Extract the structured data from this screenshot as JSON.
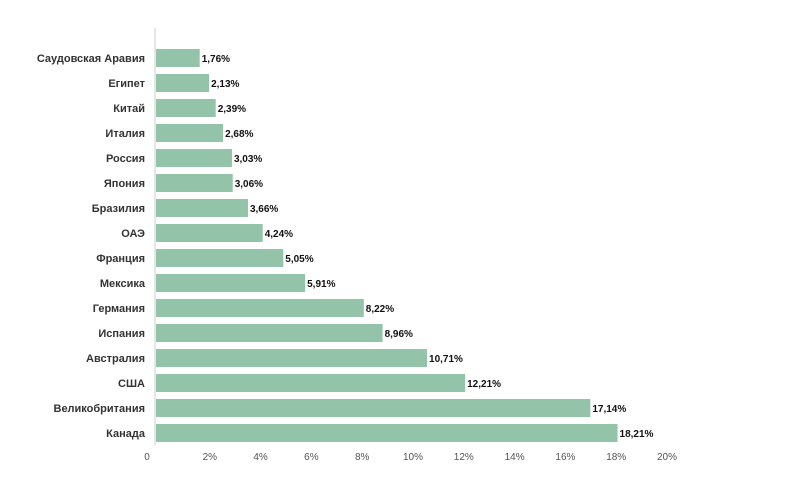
{
  "chart_data": {
    "type": "bar",
    "orientation": "horizontal",
    "categories": [
      "Саудовская Аравия",
      "Египет",
      "Китай",
      "Италия",
      "Россия",
      "Япония",
      "Бразилия",
      "ОАЭ",
      "Франция",
      "Мексика",
      "Германия",
      "Испания",
      "Австралия",
      "США",
      "Великобритания",
      "Канада"
    ],
    "values": [
      1.76,
      2.13,
      2.39,
      2.68,
      3.03,
      3.06,
      3.66,
      4.24,
      5.05,
      5.91,
      8.22,
      8.96,
      10.71,
      12.21,
      17.14,
      18.21
    ],
    "value_labels": [
      "1,76%",
      "2,13%",
      "2,39%",
      "2,68%",
      "3,03%",
      "3,06%",
      "3,66%",
      "4,24%",
      "5,05%",
      "5,91%",
      "8,22%",
      "8,96%",
      "10,71%",
      "12,21%",
      "17,14%",
      "18,21%"
    ],
    "xlim": [
      0,
      20
    ],
    "x_ticks": [
      0,
      2,
      4,
      6,
      8,
      10,
      12,
      14,
      16,
      18,
      20
    ],
    "x_tick_labels": [
      "0",
      "2%",
      "4%",
      "6%",
      "8%",
      "10%",
      "12%",
      "14%",
      "16%",
      "18%",
      "20%"
    ],
    "title": "",
    "xlabel": "",
    "ylabel": "",
    "grid": false,
    "legend": "none",
    "colors": {
      "bar": "#93c4aa",
      "axis": "#cccccc",
      "text": "#333333",
      "value_text": "#111111"
    }
  }
}
